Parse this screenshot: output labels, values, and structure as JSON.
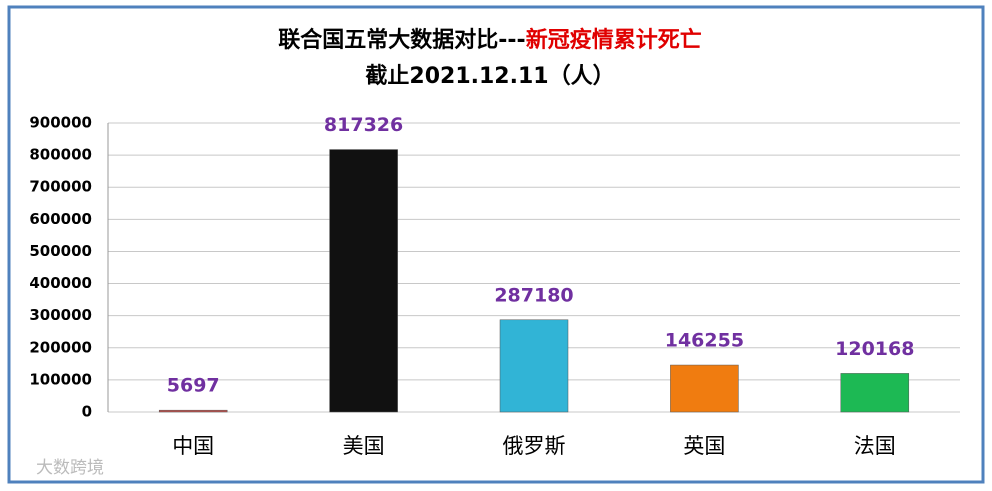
{
  "chart_data": {
    "type": "bar",
    "title": [
      "联合国五常大数据对比---",
      "新冠疫情累计死亡"
    ],
    "title_colors": [
      "#000000",
      "#e00000"
    ],
    "subtitle": "截止2021.12.11（人）",
    "categories": [
      "中国",
      "美国",
      "俄罗斯",
      "英国",
      "法国"
    ],
    "values": [
      5697,
      817326,
      287180,
      146255,
      120168
    ],
    "colors": [
      "#c0504d",
      "#111111",
      "#31b4d6",
      "#f07c10",
      "#1db954"
    ],
    "label_color": "#7030a0",
    "ylim": [
      0,
      900000
    ],
    "yticks": [
      0,
      100000,
      200000,
      300000,
      400000,
      500000,
      600000,
      700000,
      800000,
      900000
    ],
    "grid": true,
    "watermark": "大数跨境"
  }
}
